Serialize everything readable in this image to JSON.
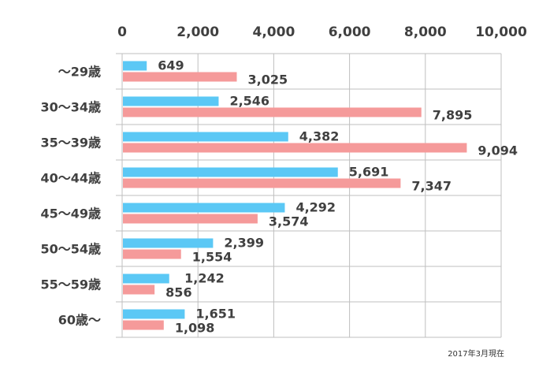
{
  "chart_data": {
    "type": "bar",
    "orientation": "horizontal",
    "categories": [
      "～29歳",
      "30～34歳",
      "35～39歳",
      "40～44歳",
      "45～49歳",
      "50～54歳",
      "55～59歳",
      "60歳～"
    ],
    "series": [
      {
        "values": [
          649,
          2546,
          4382,
          5691,
          4292,
          2399,
          1242,
          1651
        ],
        "color": "#5bc8f5"
      },
      {
        "values": [
          3025,
          7895,
          9094,
          7347,
          3574,
          1554,
          856,
          1098
        ],
        "color": "#f59a9a"
      }
    ],
    "data_labels": [
      [
        "649",
        "2,546",
        "4,382",
        "5,691",
        "4,292",
        "2,399",
        "1,242",
        "1,651"
      ],
      [
        "3,025",
        "7,895",
        "9,094",
        "7,347",
        "3,574",
        "1,554",
        "856",
        "1,098"
      ]
    ],
    "xlim": [
      0,
      10000
    ],
    "xticks": [
      0,
      2000,
      4000,
      6000,
      8000,
      10000
    ],
    "xtick_labels": [
      "0",
      "2,000",
      "4,000",
      "6,000",
      "8,000",
      "10,000"
    ],
    "axis_position": "top",
    "grid": true,
    "legend": "none",
    "gridline_color": "#bfbfbf",
    "text_color": "#404040"
  },
  "note": "2017年3月現在"
}
